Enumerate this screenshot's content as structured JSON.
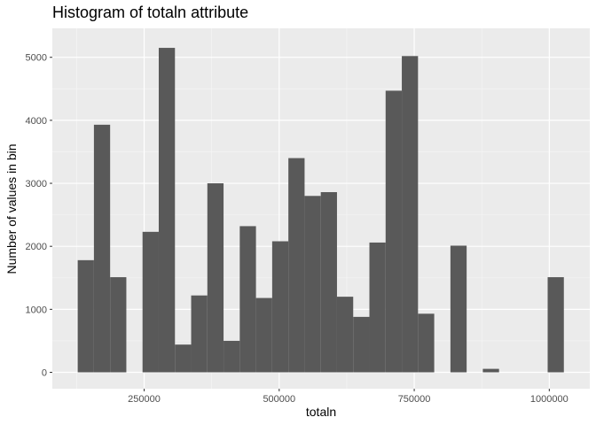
{
  "chart_data": {
    "type": "bar",
    "title": "Histogram of totaln attribute",
    "xlabel": "totaln",
    "ylabel": "Number of values in bin",
    "xlim": [
      80000,
      1075000
    ],
    "ylim": [
      -260,
      5460
    ],
    "x_ticks": [
      250000,
      500000,
      750000,
      1000000
    ],
    "x_tick_labels": [
      "250000",
      "500000",
      "750000",
      "1000000"
    ],
    "y_ticks": [
      0,
      1000,
      2000,
      3000,
      4000,
      5000
    ],
    "y_tick_labels": [
      "0",
      "1000",
      "2000",
      "3000",
      "4000",
      "5000"
    ],
    "grid": true,
    "bar_color": "#595959",
    "panel_color": "#ebebeb",
    "bins": [
      {
        "x0": 127000,
        "x1": 157000,
        "value": 1780
      },
      {
        "x0": 157000,
        "x1": 187000,
        "value": 3930
      },
      {
        "x0": 187000,
        "x1": 217000,
        "value": 1510
      },
      {
        "x0": 217000,
        "x1": 247000,
        "value": 0
      },
      {
        "x0": 247000,
        "x1": 277000,
        "value": 2230
      },
      {
        "x0": 277000,
        "x1": 307000,
        "value": 5150
      },
      {
        "x0": 307000,
        "x1": 337000,
        "value": 440
      },
      {
        "x0": 337000,
        "x1": 367000,
        "value": 1220
      },
      {
        "x0": 367000,
        "x1": 397000,
        "value": 3000
      },
      {
        "x0": 397000,
        "x1": 427000,
        "value": 500
      },
      {
        "x0": 427000,
        "x1": 457000,
        "value": 2320
      },
      {
        "x0": 457000,
        "x1": 487000,
        "value": 1180
      },
      {
        "x0": 487000,
        "x1": 517000,
        "value": 2080
      },
      {
        "x0": 517000,
        "x1": 547000,
        "value": 3400
      },
      {
        "x0": 547000,
        "x1": 577000,
        "value": 2800
      },
      {
        "x0": 577000,
        "x1": 607000,
        "value": 2860
      },
      {
        "x0": 607000,
        "x1": 637000,
        "value": 1200
      },
      {
        "x0": 637000,
        "x1": 667000,
        "value": 880
      },
      {
        "x0": 667000,
        "x1": 697000,
        "value": 2060
      },
      {
        "x0": 697000,
        "x1": 727000,
        "value": 4470
      },
      {
        "x0": 727000,
        "x1": 757000,
        "value": 5020
      },
      {
        "x0": 757000,
        "x1": 787000,
        "value": 930
      },
      {
        "x0": 787000,
        "x1": 817000,
        "value": 0
      },
      {
        "x0": 817000,
        "x1": 847000,
        "value": 2010
      },
      {
        "x0": 847000,
        "x1": 877000,
        "value": 0
      },
      {
        "x0": 877000,
        "x1": 907000,
        "value": 55
      },
      {
        "x0": 907000,
        "x1": 937000,
        "value": 0
      },
      {
        "x0": 937000,
        "x1": 967000,
        "value": 0
      },
      {
        "x0": 967000,
        "x1": 997000,
        "value": 0
      },
      {
        "x0": 997000,
        "x1": 1027000,
        "value": 1510
      }
    ]
  }
}
